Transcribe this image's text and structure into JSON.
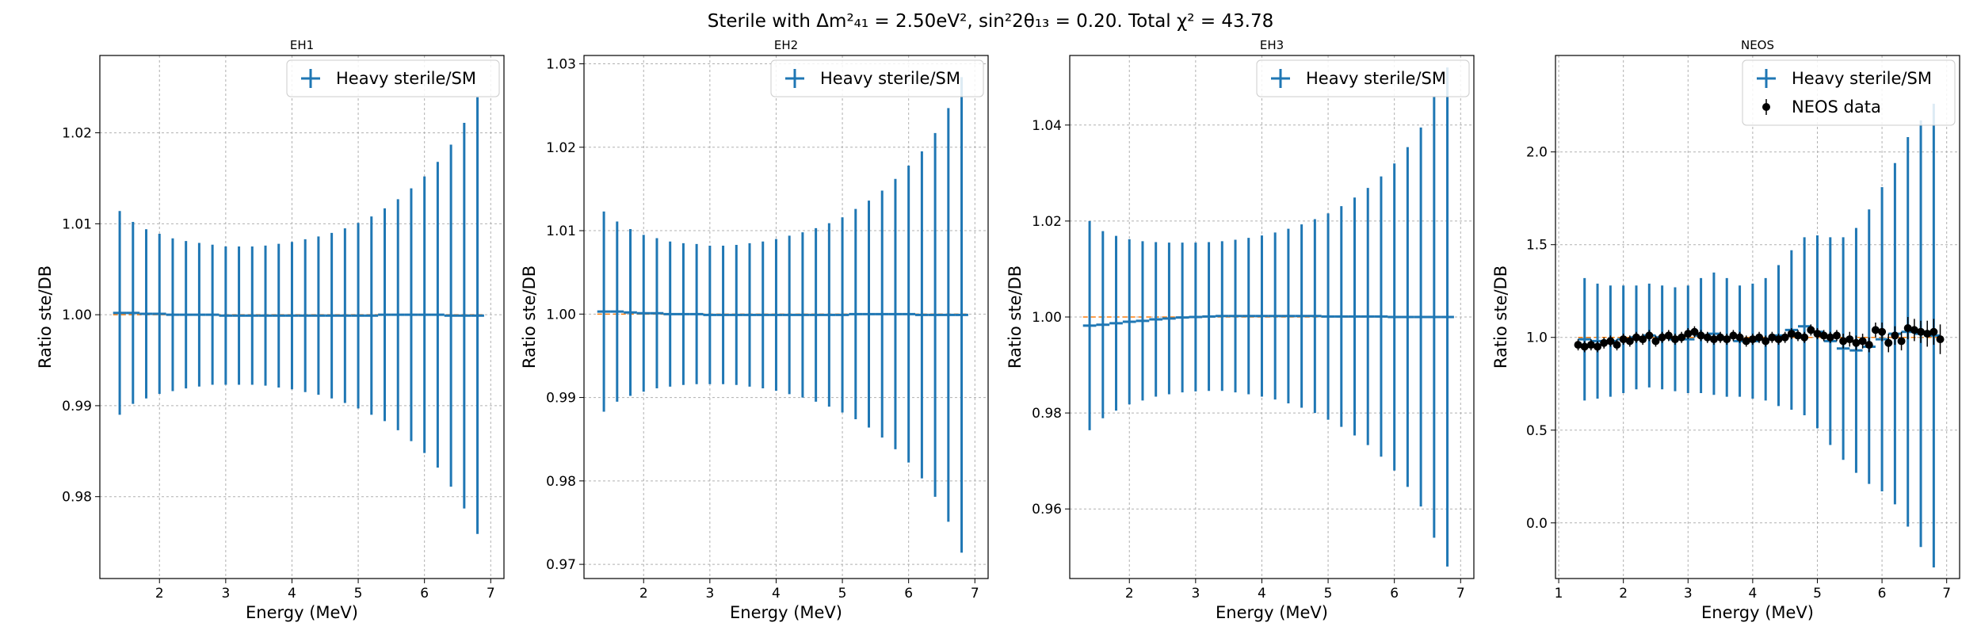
{
  "figure_title": "Sterile with Δm²₄₁ = 2.50eV², sin²2θ₁₃ = 0.20. Total χ² = 43.78",
  "colors": {
    "series": "#1f77b4",
    "reference": "#ff7f0e",
    "data": "#000000",
    "grid": "#b0b0b0"
  },
  "chart_data": [
    {
      "type": "errorbar",
      "title": "EH1",
      "xlabel": "Energy (MeV)",
      "ylabel": "Ratio ste/DB",
      "xlim": [
        1.1,
        7.2
      ],
      "ylim": [
        0.971,
        1.0285
      ],
      "xticks": [
        2,
        3,
        4,
        5,
        6,
        7
      ],
      "yticks": [
        0.98,
        0.99,
        1.0,
        1.01,
        1.02
      ],
      "ytick_labels": [
        "0.98",
        "0.99",
        "1.00",
        "1.01",
        "1.02"
      ],
      "grid": true,
      "legend": {
        "position": "top-right",
        "entries": [
          {
            "label": "Heavy sterile/SM",
            "marker": "errorbar"
          }
        ]
      },
      "x": [
        1.4,
        1.6,
        1.8,
        2.0,
        2.2,
        2.4,
        2.6,
        2.8,
        3.0,
        3.2,
        3.4,
        3.6,
        3.8,
        4.0,
        4.2,
        4.4,
        4.6,
        4.8,
        5.0,
        5.2,
        5.4,
        5.6,
        5.8,
        6.0,
        6.2,
        6.4,
        6.6,
        6.8
      ],
      "series": [
        {
          "name": "Heavy sterile/SM",
          "values": [
            1.0002,
            1.0002,
            1.0001,
            1.0001,
            1.0,
            1.0,
            1.0,
            1.0,
            0.9999,
            0.9999,
            0.9999,
            0.9999,
            0.9999,
            0.9999,
            0.9999,
            0.9999,
            0.9999,
            0.9999,
            0.9999,
            0.9999,
            1.0,
            1.0,
            1.0,
            1.0,
            1.0,
            0.9999,
            0.9999,
            0.9999
          ],
          "errors": [
            0.0112,
            0.01,
            0.0093,
            0.0088,
            0.0084,
            0.0081,
            0.0079,
            0.0077,
            0.0076,
            0.0076,
            0.0076,
            0.0077,
            0.0079,
            0.0081,
            0.0084,
            0.0087,
            0.0091,
            0.0096,
            0.0102,
            0.0109,
            0.0117,
            0.0127,
            0.0139,
            0.0152,
            0.0168,
            0.0188,
            0.0212,
            0.024
          ]
        }
      ],
      "reference_line": 1.0
    },
    {
      "type": "errorbar",
      "title": "EH2",
      "xlabel": "Energy (MeV)",
      "ylabel": "Ratio ste/DB",
      "xlim": [
        1.1,
        7.2
      ],
      "ylim": [
        0.9683,
        1.031
      ],
      "xticks": [
        2,
        3,
        4,
        5,
        6,
        7
      ],
      "yticks": [
        0.97,
        0.98,
        0.99,
        1.0,
        1.01,
        1.02,
        1.03
      ],
      "ytick_labels": [
        "0.97",
        "0.98",
        "0.99",
        "1.00",
        "1.01",
        "1.02",
        "1.03"
      ],
      "grid": true,
      "legend": {
        "position": "top-right",
        "entries": [
          {
            "label": "Heavy sterile/SM",
            "marker": "errorbar"
          }
        ]
      },
      "x": [
        1.4,
        1.6,
        1.8,
        2.0,
        2.2,
        2.4,
        2.6,
        2.8,
        3.0,
        3.2,
        3.4,
        3.6,
        3.8,
        4.0,
        4.2,
        4.4,
        4.6,
        4.8,
        5.0,
        5.2,
        5.4,
        5.6,
        5.8,
        6.0,
        6.2,
        6.4,
        6.6,
        6.8
      ],
      "series": [
        {
          "name": "Heavy sterile/SM",
          "values": [
            1.0003,
            1.0003,
            1.0002,
            1.0001,
            1.0001,
            1.0,
            1.0,
            1.0,
            0.9999,
            0.9999,
            0.9999,
            0.9999,
            0.9999,
            0.9999,
            0.9999,
            0.9999,
            0.9999,
            0.9999,
            0.9999,
            1.0,
            1.0,
            1.0,
            1.0,
            1.0,
            0.9999,
            0.9999,
            0.9999,
            0.9999
          ],
          "errors": [
            0.012,
            0.0108,
            0.01,
            0.0094,
            0.009,
            0.0087,
            0.0085,
            0.0084,
            0.0083,
            0.0083,
            0.0084,
            0.0086,
            0.0088,
            0.0091,
            0.0095,
            0.0099,
            0.0104,
            0.011,
            0.0117,
            0.0126,
            0.0136,
            0.0148,
            0.0162,
            0.0178,
            0.0196,
            0.0218,
            0.0248,
            0.0285
          ]
        }
      ],
      "reference_line": 1.0
    },
    {
      "type": "errorbar",
      "title": "EH3",
      "xlabel": "Energy (MeV)",
      "ylabel": "Ratio ste/DB",
      "xlim": [
        1.1,
        7.2
      ],
      "ylim": [
        0.9455,
        1.0545
      ],
      "xticks": [
        2,
        3,
        4,
        5,
        6,
        7
      ],
      "yticks": [
        0.96,
        0.98,
        1.0,
        1.02,
        1.04
      ],
      "ytick_labels": [
        "0.96",
        "0.98",
        "1.00",
        "1.02",
        "1.04"
      ],
      "grid": true,
      "legend": {
        "position": "top-right",
        "entries": [
          {
            "label": "Heavy sterile/SM",
            "marker": "errorbar"
          }
        ]
      },
      "x": [
        1.4,
        1.6,
        1.8,
        2.0,
        2.2,
        2.4,
        2.6,
        2.8,
        3.0,
        3.2,
        3.4,
        3.6,
        3.8,
        4.0,
        4.2,
        4.4,
        4.6,
        4.8,
        5.0,
        5.2,
        5.4,
        5.6,
        5.8,
        6.0,
        6.2,
        6.4,
        6.6,
        6.8
      ],
      "series": [
        {
          "name": "Heavy sterile/SM",
          "values": [
            0.9982,
            0.9984,
            0.9987,
            0.999,
            0.9992,
            0.9995,
            0.9997,
            0.9999,
            1.0,
            1.0001,
            1.0002,
            1.0002,
            1.0002,
            1.0002,
            1.0002,
            1.0002,
            1.0002,
            1.0002,
            1.0001,
            1.0001,
            1.0001,
            1.0001,
            1.0001,
            1.0,
            1.0,
            1.0,
            1.0,
            1.0
          ],
          "errors": [
            0.0218,
            0.0195,
            0.0182,
            0.0172,
            0.0166,
            0.0161,
            0.0158,
            0.0156,
            0.0155,
            0.0155,
            0.0156,
            0.0159,
            0.0163,
            0.0168,
            0.0174,
            0.0182,
            0.0191,
            0.0202,
            0.0215,
            0.023,
            0.0248,
            0.0268,
            0.0292,
            0.032,
            0.0354,
            0.0395,
            0.046,
            0.052
          ]
        }
      ],
      "reference_line": 1.0
    },
    {
      "type": "errorbar",
      "title": "NEOS",
      "xlabel": "Energy (MeV)",
      "ylabel": "Ratio ste/DB",
      "xlim": [
        0.95,
        7.2
      ],
      "ylim": [
        -0.3,
        2.52
      ],
      "xticks": [
        1,
        2,
        3,
        4,
        5,
        6,
        7
      ],
      "yticks": [
        0.0,
        0.5,
        1.0,
        1.5,
        2.0
      ],
      "ytick_labels": [
        "0.0",
        "0.5",
        "1.0",
        "1.5",
        "2.0"
      ],
      "grid": true,
      "legend": {
        "position": "top-right",
        "entries": [
          {
            "label": "Heavy sterile/SM",
            "marker": "errorbar"
          },
          {
            "label": "NEOS data",
            "marker": "dot-errorbar"
          }
        ]
      },
      "x": [
        1.4,
        1.6,
        1.8,
        2.0,
        2.2,
        2.4,
        2.6,
        2.8,
        3.0,
        3.2,
        3.4,
        3.6,
        3.8,
        4.0,
        4.2,
        4.4,
        4.6,
        4.8,
        5.0,
        5.2,
        5.4,
        5.6,
        5.8,
        6.0,
        6.2,
        6.4,
        6.6,
        6.8
      ],
      "series": [
        {
          "name": "Heavy sterile/SM",
          "values": [
            0.99,
            0.98,
            0.98,
            0.99,
            1.0,
            1.01,
            1.0,
            0.99,
            0.99,
            1.01,
            1.02,
            1.0,
            0.98,
            0.98,
            0.99,
            1.01,
            1.04,
            1.06,
            1.03,
            0.98,
            0.94,
            0.93,
            0.95,
            0.99,
            1.02,
            1.03,
            1.02,
            1.01
          ],
          "errors": [
            0.33,
            0.31,
            0.3,
            0.29,
            0.28,
            0.28,
            0.28,
            0.28,
            0.29,
            0.31,
            0.33,
            0.32,
            0.3,
            0.31,
            0.33,
            0.38,
            0.43,
            0.48,
            0.52,
            0.56,
            0.6,
            0.66,
            0.74,
            0.82,
            0.92,
            1.05,
            1.15,
            1.25
          ]
        }
      ],
      "neos_data": {
        "name": "NEOS data",
        "x": [
          1.3,
          1.4,
          1.5,
          1.6,
          1.7,
          1.8,
          1.9,
          2.0,
          2.1,
          2.2,
          2.3,
          2.4,
          2.5,
          2.6,
          2.7,
          2.8,
          2.9,
          3.0,
          3.1,
          3.2,
          3.3,
          3.4,
          3.5,
          3.6,
          3.7,
          3.8,
          3.9,
          4.0,
          4.1,
          4.2,
          4.3,
          4.4,
          4.5,
          4.6,
          4.7,
          4.8,
          4.9,
          5.0,
          5.1,
          5.2,
          5.3,
          5.4,
          5.5,
          5.6,
          5.7,
          5.8,
          5.9,
          6.0,
          6.1,
          6.2,
          6.3,
          6.4,
          6.5,
          6.6,
          6.7,
          6.8,
          6.9
        ],
        "values": [
          0.96,
          0.95,
          0.96,
          0.95,
          0.97,
          0.98,
          0.96,
          0.99,
          0.98,
          1.0,
          0.99,
          1.01,
          0.98,
          1.0,
          1.01,
          0.99,
          1.0,
          1.02,
          1.03,
          1.01,
          1.0,
          0.99,
          1.0,
          0.99,
          1.01,
          1.0,
          0.98,
          0.99,
          1.0,
          0.98,
          1.0,
          0.99,
          1.0,
          1.02,
          1.01,
          1.0,
          1.04,
          1.02,
          1.01,
          1.0,
          1.01,
          0.98,
          0.99,
          0.97,
          0.98,
          0.96,
          1.04,
          1.03,
          0.97,
          1.01,
          0.98,
          1.05,
          1.04,
          1.03,
          1.02,
          1.03,
          0.99
        ],
        "errors": [
          0.03,
          0.03,
          0.03,
          0.03,
          0.03,
          0.03,
          0.03,
          0.03,
          0.03,
          0.03,
          0.03,
          0.03,
          0.03,
          0.03,
          0.03,
          0.03,
          0.03,
          0.03,
          0.03,
          0.03,
          0.03,
          0.03,
          0.03,
          0.03,
          0.03,
          0.03,
          0.03,
          0.03,
          0.03,
          0.03,
          0.03,
          0.03,
          0.03,
          0.03,
          0.03,
          0.03,
          0.03,
          0.03,
          0.03,
          0.03,
          0.03,
          0.04,
          0.04,
          0.04,
          0.04,
          0.04,
          0.04,
          0.05,
          0.05,
          0.05,
          0.05,
          0.06,
          0.06,
          0.06,
          0.07,
          0.07,
          0.08
        ]
      },
      "reference_line": 1.0
    }
  ]
}
